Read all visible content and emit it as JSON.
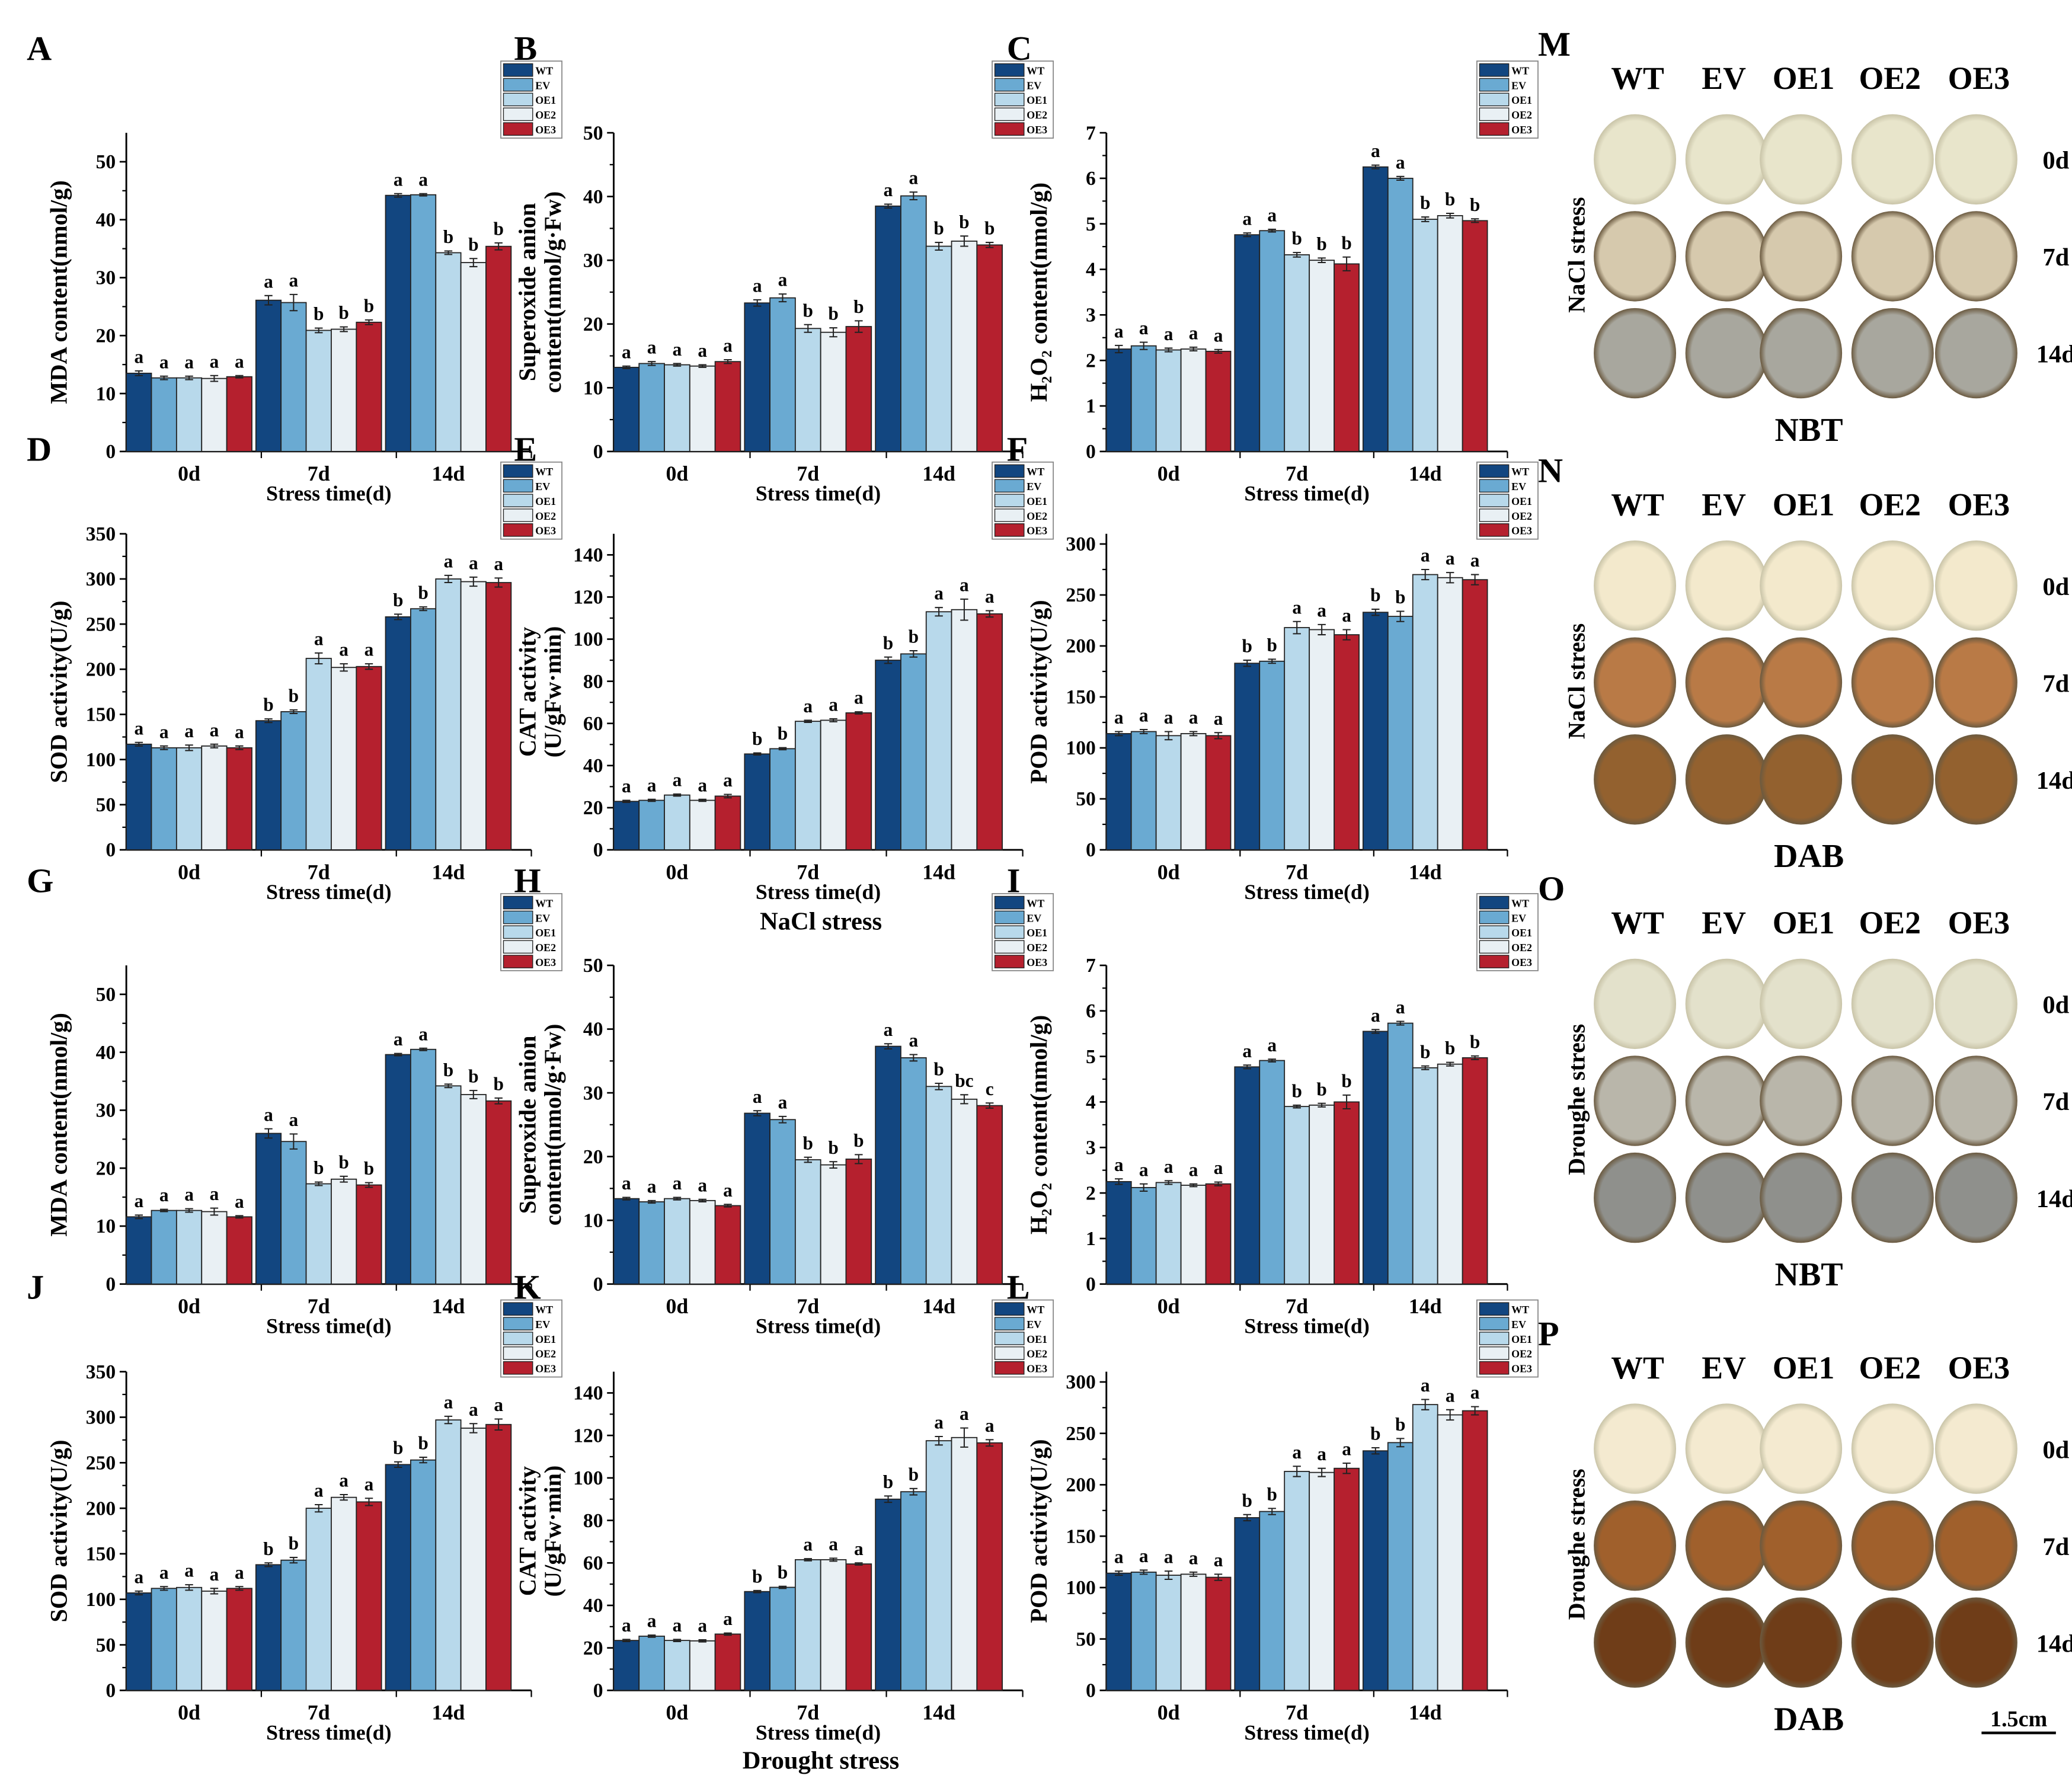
{
  "groups": [
    "WT",
    "EV",
    "OE1",
    "OE2",
    "OE3"
  ],
  "colors": {
    "WT": "#124680",
    "EV": "#6aaad2",
    "OE1": "#b8d9eb",
    "OE2": "#e9f0f4",
    "OE3": "#b5202e"
  },
  "stress_labels": {
    "nacl": "NaCl stress",
    "drought": "Drought stress"
  },
  "chart_data": [
    {
      "panel": "A",
      "type": "bar",
      "ylabel": "MDA content(nmol/g)",
      "xlabel": "Stress time(d)",
      "categories": [
        "0d",
        "7d",
        "14d"
      ],
      "ylim": [
        0,
        55
      ],
      "yticks": [
        0,
        10,
        20,
        30,
        40,
        50
      ],
      "values": [
        [
          13.5,
          12.7,
          12.7,
          12.6,
          12.9
        ],
        [
          26.1,
          25.7,
          20.9,
          21.1,
          22.3
        ],
        [
          44.2,
          44.3,
          34.3,
          32.6,
          35.4
        ]
      ],
      "errors": [
        [
          0.4,
          0.3,
          0.3,
          0.5,
          0.2
        ],
        [
          0.8,
          1.4,
          0.4,
          0.4,
          0.4
        ],
        [
          0.3,
          0.2,
          0.3,
          0.7,
          0.6
        ]
      ],
      "letters": [
        [
          "a",
          "a",
          "a",
          "a",
          "a"
        ],
        [
          "a",
          "a",
          "b",
          "b",
          "b"
        ],
        [
          "a",
          "a",
          "b",
          "b",
          "b"
        ]
      ]
    },
    {
      "panel": "B",
      "type": "bar",
      "ylabel": "Superoxide anion",
      "ylabel2": "content(nmol/g·Fw)",
      "xlabel": "Stress time(d)",
      "categories": [
        "0d",
        "7d",
        "14d"
      ],
      "ylim": [
        0,
        50
      ],
      "yticks": [
        0,
        10,
        20,
        30,
        40,
        50
      ],
      "values": [
        [
          13.2,
          13.8,
          13.6,
          13.4,
          14.1
        ],
        [
          23.3,
          24.1,
          19.3,
          18.7,
          19.6
        ],
        [
          38.5,
          40.1,
          32.2,
          33.0,
          32.4
        ]
      ],
      "errors": [
        [
          0.2,
          0.3,
          0.2,
          0.2,
          0.3
        ],
        [
          0.5,
          0.6,
          0.6,
          0.7,
          0.9
        ],
        [
          0.3,
          0.6,
          0.6,
          0.8,
          0.4
        ]
      ],
      "letters": [
        [
          "a",
          "a",
          "a",
          "a",
          "a"
        ],
        [
          "a",
          "a",
          "b",
          "b",
          "b"
        ],
        [
          "a",
          "a",
          "b",
          "b",
          "b"
        ]
      ]
    },
    {
      "panel": "C",
      "type": "bar",
      "ylabel": "H₂O₂ content(nmol/g)",
      "xlabel": "Stress time(d)",
      "categories": [
        "0d",
        "7d",
        "14d"
      ],
      "ylim": [
        0,
        7
      ],
      "yticks": [
        0,
        1,
        2,
        3,
        4,
        5,
        6,
        7
      ],
      "values": [
        [
          2.25,
          2.32,
          2.23,
          2.25,
          2.2
        ],
        [
          4.76,
          4.85,
          4.32,
          4.2,
          4.12
        ],
        [
          6.25,
          6.0,
          5.1,
          5.18,
          5.07
        ]
      ],
      "errors": [
        [
          0.08,
          0.08,
          0.04,
          0.04,
          0.04
        ],
        [
          0.04,
          0.03,
          0.05,
          0.05,
          0.15
        ],
        [
          0.04,
          0.04,
          0.05,
          0.05,
          0.04
        ]
      ],
      "letters": [
        [
          "a",
          "a",
          "a",
          "a",
          "a"
        ],
        [
          "a",
          "a",
          "b",
          "b",
          "b"
        ],
        [
          "a",
          "a",
          "b",
          "b",
          "b"
        ]
      ]
    },
    {
      "panel": "D",
      "type": "bar",
      "ylabel": "SOD activity(U/g)",
      "xlabel": "Stress time(d)",
      "categories": [
        "0d",
        "7d",
        "14d"
      ],
      "ylim": [
        0,
        350
      ],
      "yticks": [
        0,
        50,
        100,
        150,
        200,
        250,
        300,
        350
      ],
      "values": [
        [
          117,
          113,
          113,
          115,
          113
        ],
        [
          143,
          153,
          212,
          202,
          203
        ],
        [
          258,
          267,
          300,
          297,
          296
        ]
      ],
      "errors": [
        [
          2,
          2,
          3,
          2,
          2
        ],
        [
          2,
          2,
          6,
          4,
          3
        ],
        [
          3,
          2,
          4,
          5,
          5
        ]
      ],
      "letters": [
        [
          "a",
          "a",
          "a",
          "a",
          "a"
        ],
        [
          "b",
          "b",
          "a",
          "a",
          "a"
        ],
        [
          "b",
          "b",
          "a",
          "a",
          "a"
        ]
      ]
    },
    {
      "panel": "E",
      "type": "bar",
      "ylabel": "CAT activity",
      "ylabel2": "(U/gFw·min)",
      "xlabel": "Stress time(d)",
      "categories": [
        "0d",
        "7d",
        "14d"
      ],
      "ylim": [
        0,
        150
      ],
      "yticks": [
        0,
        20,
        40,
        60,
        80,
        100,
        120,
        140
      ],
      "values": [
        [
          23,
          23.5,
          26,
          23.5,
          25.5
        ],
        [
          45.5,
          48,
          61,
          61.5,
          65
        ],
        [
          90,
          93,
          113,
          114,
          112
        ]
      ],
      "errors": [
        [
          0.5,
          0.5,
          0.5,
          0.5,
          0.8
        ],
        [
          0.5,
          0.5,
          0.5,
          0.7,
          0.5
        ],
        [
          1.5,
          1.5,
          2,
          5,
          1.5
        ]
      ],
      "letters": [
        [
          "a",
          "a",
          "a",
          "a",
          "a"
        ],
        [
          "b",
          "b",
          "a",
          "a",
          "a"
        ],
        [
          "b",
          "b",
          "a",
          "a",
          "a"
        ]
      ]
    },
    {
      "panel": "F",
      "type": "bar",
      "ylabel": "POD activity(U/g)",
      "xlabel": "Stress time(d)",
      "categories": [
        "0d",
        "7d",
        "14d"
      ],
      "ylim": [
        0,
        310
      ],
      "yticks": [
        0,
        50,
        100,
        150,
        200,
        250,
        300
      ],
      "values": [
        [
          114,
          116,
          112,
          114,
          112
        ],
        [
          183,
          185,
          218,
          216,
          211
        ],
        [
          233,
          229,
          270,
          267,
          265
        ]
      ],
      "errors": [
        [
          2,
          2,
          4,
          2,
          3
        ],
        [
          3,
          2,
          6,
          5,
          5
        ],
        [
          3,
          5,
          5,
          5,
          5
        ]
      ],
      "letters": [
        [
          "a",
          "a",
          "a",
          "a",
          "a"
        ],
        [
          "b",
          "b",
          "a",
          "a",
          "a"
        ],
        [
          "b",
          "b",
          "a",
          "a",
          "a"
        ]
      ]
    },
    {
      "panel": "G",
      "type": "bar",
      "ylabel": "MDA content(nmol/g)",
      "xlabel": "Stress time(d)",
      "categories": [
        "0d",
        "7d",
        "14d"
      ],
      "ylim": [
        0,
        55
      ],
      "yticks": [
        0,
        10,
        20,
        30,
        40,
        50
      ],
      "values": [
        [
          11.6,
          12.7,
          12.7,
          12.5,
          11.6
        ],
        [
          26.0,
          24.6,
          17.3,
          18.1,
          17.1
        ],
        [
          39.6,
          40.5,
          34.2,
          32.7,
          31.6
        ]
      ],
      "errors": [
        [
          0.3,
          0.2,
          0.3,
          0.6,
          0.2
        ],
        [
          0.8,
          1.3,
          0.3,
          0.5,
          0.4
        ],
        [
          0.2,
          0.2,
          0.3,
          0.7,
          0.5
        ]
      ],
      "letters": [
        [
          "a",
          "a",
          "a",
          "a",
          "a"
        ],
        [
          "a",
          "a",
          "b",
          "b",
          "b"
        ],
        [
          "a",
          "a",
          "b",
          "b",
          "b"
        ]
      ]
    },
    {
      "panel": "H",
      "type": "bar",
      "ylabel": "Superoxide anion",
      "ylabel2": "content(nmol/g·Fw)",
      "xlabel": "Stress time(d)",
      "categories": [
        "0d",
        "7d",
        "14d"
      ],
      "ylim": [
        0,
        50
      ],
      "yticks": [
        0,
        10,
        20,
        30,
        40,
        50
      ],
      "values": [
        [
          13.4,
          12.9,
          13.4,
          13.1,
          12.3
        ],
        [
          26.8,
          25.8,
          19.5,
          18.7,
          19.6
        ],
        [
          37.3,
          35.5,
          31.0,
          29.0,
          28.0
        ]
      ],
      "errors": [
        [
          0.2,
          0.2,
          0.2,
          0.2,
          0.2
        ],
        [
          0.4,
          0.5,
          0.4,
          0.5,
          0.7
        ],
        [
          0.4,
          0.5,
          0.5,
          0.7,
          0.4
        ]
      ],
      "letters": [
        [
          "a",
          "a",
          "a",
          "a",
          "a"
        ],
        [
          "a",
          "a",
          "b",
          "b",
          "b"
        ],
        [
          "a",
          "a",
          "b",
          "bc",
          "c"
        ]
      ]
    },
    {
      "panel": "I",
      "type": "bar",
      "ylabel": "H₂O₂ content(nmol/g)",
      "xlabel": "Stress time(d)",
      "categories": [
        "0d",
        "7d",
        "14d"
      ],
      "ylim": [
        0,
        7
      ],
      "yticks": [
        0,
        1,
        2,
        3,
        4,
        5,
        6,
        7
      ],
      "values": [
        [
          2.25,
          2.12,
          2.23,
          2.17,
          2.2
        ],
        [
          4.77,
          4.91,
          3.9,
          3.93,
          4.0
        ],
        [
          5.55,
          5.73,
          4.75,
          4.83,
          4.97
        ]
      ],
      "errors": [
        [
          0.06,
          0.08,
          0.04,
          0.03,
          0.04
        ],
        [
          0.04,
          0.03,
          0.03,
          0.04,
          0.15
        ],
        [
          0.04,
          0.04,
          0.04,
          0.04,
          0.04
        ]
      ],
      "letters": [
        [
          "a",
          "a",
          "a",
          "a",
          "a"
        ],
        [
          "a",
          "a",
          "b",
          "b",
          "b"
        ],
        [
          "a",
          "a",
          "b",
          "b",
          "b"
        ]
      ]
    },
    {
      "panel": "J",
      "type": "bar",
      "ylabel": "SOD activity(U/g)",
      "xlabel": "Stress time(d)",
      "categories": [
        "0d",
        "7d",
        "14d"
      ],
      "ylim": [
        0,
        350
      ],
      "yticks": [
        0,
        50,
        100,
        150,
        200,
        250,
        300,
        350
      ],
      "values": [
        [
          107,
          112,
          113,
          109,
          112
        ],
        [
          138,
          143,
          200,
          212,
          207
        ],
        [
          248,
          253,
          297,
          288,
          292
        ]
      ],
      "errors": [
        [
          2,
          2,
          3,
          3,
          2
        ],
        [
          2,
          3,
          4,
          3,
          4
        ],
        [
          3,
          3,
          4,
          5,
          6
        ]
      ],
      "letters": [
        [
          "a",
          "a",
          "a",
          "a",
          "a"
        ],
        [
          "b",
          "b",
          "a",
          "a",
          "a"
        ],
        [
          "b",
          "b",
          "a",
          "a",
          "a"
        ]
      ]
    },
    {
      "panel": "K",
      "type": "bar",
      "ylabel": "CAT activity",
      "ylabel2": "(U/gFw·min)",
      "xlabel": "Stress time(d)",
      "categories": [
        "0d",
        "7d",
        "14d"
      ],
      "ylim": [
        0,
        150
      ],
      "yticks": [
        0,
        20,
        40,
        60,
        80,
        100,
        120,
        140
      ],
      "values": [
        [
          23.5,
          25.5,
          23.5,
          23.3,
          26.5
        ],
        [
          46.5,
          48.5,
          61.5,
          61.5,
          59.5
        ],
        [
          90,
          93.5,
          117.5,
          119,
          116.5
        ]
      ],
      "errors": [
        [
          0.5,
          0.5,
          0.5,
          0.5,
          0.5
        ],
        [
          0.5,
          0.5,
          0.5,
          0.7,
          0.5
        ],
        [
          1.5,
          1.5,
          2,
          4.5,
          1.5
        ]
      ],
      "letters": [
        [
          "a",
          "a",
          "a",
          "a",
          "a"
        ],
        [
          "b",
          "b",
          "a",
          "a",
          "a"
        ],
        [
          "b",
          "b",
          "a",
          "a",
          "a"
        ]
      ]
    },
    {
      "panel": "L",
      "type": "bar",
      "ylabel": "POD activity(U/g)",
      "xlabel": "Stress time(d)",
      "categories": [
        "0d",
        "7d",
        "14d"
      ],
      "ylim": [
        0,
        310
      ],
      "yticks": [
        0,
        50,
        100,
        150,
        200,
        250,
        300
      ],
      "values": [
        [
          114,
          115,
          112,
          113,
          110
        ],
        [
          168,
          174,
          213,
          212,
          216
        ],
        [
          233,
          241,
          278,
          268,
          272
        ]
      ],
      "errors": [
        [
          2,
          2,
          4,
          2,
          3
        ],
        [
          3,
          3,
          5,
          4,
          5
        ],
        [
          3,
          4,
          5,
          5,
          4
        ]
      ],
      "letters": [
        [
          "a",
          "a",
          "a",
          "a",
          "a"
        ],
        [
          "b",
          "b",
          "a",
          "a",
          "a"
        ],
        [
          "b",
          "b",
          "a",
          "a",
          "a"
        ]
      ]
    }
  ],
  "stain_panels": [
    {
      "panel": "M",
      "side_label": "NaCl stress",
      "stain": "NBT",
      "rows": [
        "0d",
        "7d",
        "14d"
      ],
      "tones": [
        "#e8e5cb",
        "#d6c9ad",
        "#a8a79e"
      ]
    },
    {
      "panel": "N",
      "side_label": "NaCl stress",
      "stain": "DAB",
      "rows": [
        "0d",
        "7d",
        "14d"
      ],
      "tones": [
        "#f3e9cc",
        "#b97a46",
        "#93612f"
      ]
    },
    {
      "panel": "O",
      "side_label": "Droughe stress",
      "stain": "NBT",
      "rows": [
        "0d",
        "7d",
        "14d"
      ],
      "tones": [
        "#e3e1cb",
        "#b9b6aa",
        "#8f908c"
      ]
    },
    {
      "panel": "P",
      "side_label": "Droughe stress",
      "stain": "DAB",
      "rows": [
        "0d",
        "7d",
        "14d"
      ],
      "tones": [
        "#f4ead0",
        "#a0602c",
        "#6f3d18"
      ]
    }
  ],
  "scale_bar": "1.5cm"
}
